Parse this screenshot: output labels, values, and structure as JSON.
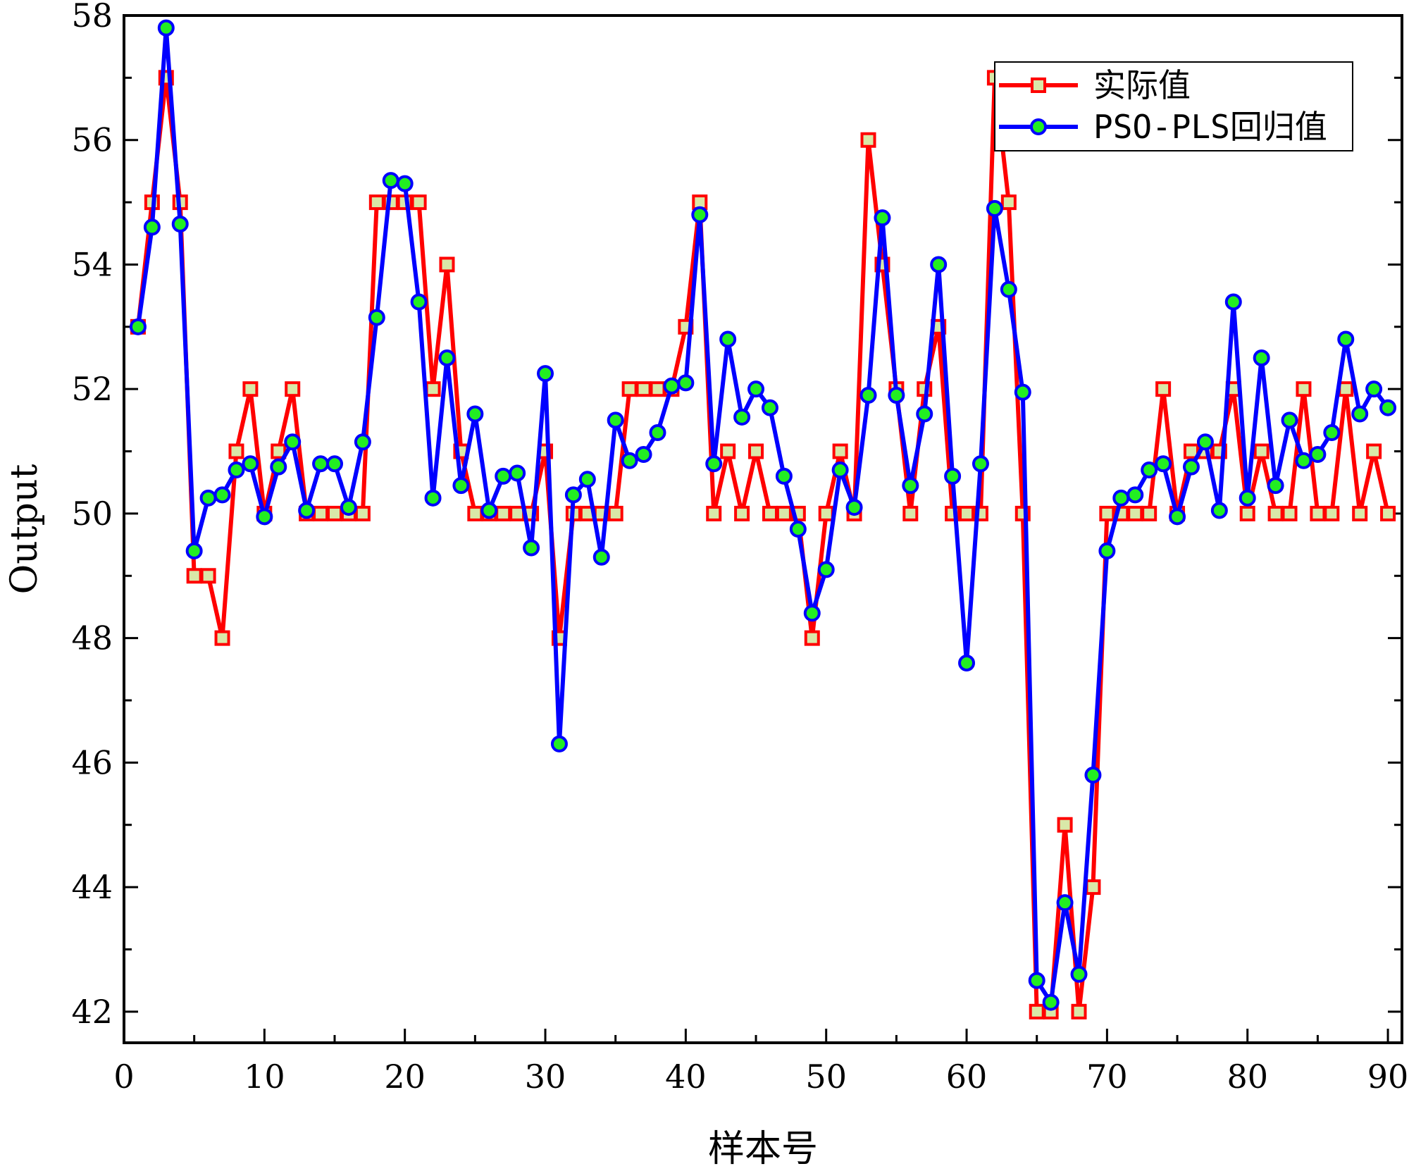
{
  "chart_data": {
    "type": "line",
    "xlabel": "样本号",
    "ylabel": "Output",
    "xlim": [
      0,
      91
    ],
    "ylim": [
      41.5,
      58
    ],
    "x_ticks": [
      0,
      10,
      20,
      30,
      40,
      50,
      60,
      70,
      80,
      90
    ],
    "y_ticks": [
      42,
      44,
      46,
      48,
      50,
      52,
      54,
      56,
      58
    ],
    "x_tick_labels": [
      "0",
      "10",
      "20",
      "30",
      "40",
      "50",
      "60",
      "70",
      "80",
      "90"
    ],
    "y_tick_labels": [
      "42",
      "44",
      "46",
      "48",
      "50",
      "52",
      "54",
      "56",
      "58"
    ],
    "legend_position": "top-right",
    "x": [
      1,
      2,
      3,
      4,
      5,
      6,
      7,
      8,
      9,
      10,
      11,
      12,
      13,
      14,
      15,
      16,
      17,
      18,
      19,
      20,
      21,
      22,
      23,
      24,
      25,
      26,
      27,
      28,
      29,
      30,
      31,
      32,
      33,
      34,
      35,
      36,
      37,
      38,
      39,
      40,
      41,
      42,
      43,
      44,
      45,
      46,
      47,
      48,
      49,
      50,
      51,
      52,
      53,
      54,
      55,
      56,
      57,
      58,
      59,
      60,
      61,
      62,
      63,
      64,
      65,
      66,
      67,
      68,
      69,
      70,
      71,
      72,
      73,
      74,
      75,
      76,
      77,
      78,
      79,
      80,
      81,
      82,
      83,
      84,
      85,
      86,
      87,
      88,
      89,
      90
    ],
    "series": [
      {
        "name": "实际值",
        "color": "#ff0000",
        "marker": "square",
        "marker_fill": "#d9e8a8",
        "values": [
          53,
          55,
          57,
          55,
          49,
          49,
          48,
          51,
          52,
          50,
          51,
          52,
          50,
          50,
          50,
          50,
          50,
          55,
          55,
          55,
          55,
          52,
          54,
          51,
          50,
          50,
          50,
          50,
          50,
          51,
          48,
          50,
          50,
          50,
          50,
          52,
          52,
          52,
          52,
          53,
          55,
          50,
          51,
          50,
          51,
          50,
          50,
          50,
          48,
          50,
          51,
          50,
          56,
          54,
          52,
          50,
          52,
          53,
          50,
          50,
          50,
          57,
          55,
          50,
          42,
          42,
          45,
          42,
          44,
          50,
          50,
          50,
          50,
          52,
          50,
          51,
          51,
          51,
          52,
          50,
          51,
          50,
          50,
          52,
          50,
          50,
          52,
          50,
          51,
          50
        ]
      },
      {
        "name": "PSO-PLS回归值",
        "color": "#0000ff",
        "marker": "circle",
        "marker_fill": "#22ee22",
        "values": [
          53.0,
          54.6,
          57.8,
          54.65,
          49.4,
          50.25,
          50.3,
          50.7,
          50.8,
          49.95,
          50.75,
          51.15,
          50.05,
          50.8,
          50.8,
          50.1,
          51.15,
          53.15,
          55.35,
          55.3,
          53.4,
          50.25,
          52.5,
          50.45,
          51.6,
          50.05,
          50.6,
          50.65,
          49.45,
          52.25,
          46.3,
          50.3,
          50.55,
          49.3,
          51.5,
          50.85,
          50.95,
          51.3,
          52.05,
          52.1,
          54.8,
          50.8,
          52.8,
          51.55,
          52.0,
          51.7,
          50.6,
          49.75,
          48.4,
          49.1,
          50.7,
          50.1,
          51.9,
          54.75,
          51.9,
          50.45,
          51.6,
          54.0,
          50.6,
          47.6,
          50.8,
          54.9,
          53.6,
          51.95,
          42.5,
          42.15,
          43.75,
          42.6,
          45.8,
          49.4,
          50.25,
          50.3,
          50.7,
          50.8,
          49.95,
          50.75,
          51.15,
          50.05,
          53.4,
          50.25,
          52.5,
          50.45,
          51.5,
          50.85,
          50.95,
          51.3,
          52.8,
          51.6,
          52.0,
          51.7
        ]
      }
    ]
  }
}
